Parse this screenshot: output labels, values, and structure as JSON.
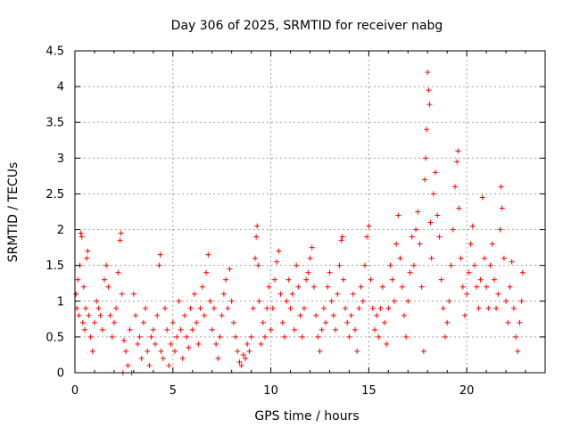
{
  "chart_data": {
    "type": "scatter",
    "title": "Day 306 of 2025, SRMTID for receiver nabg",
    "xlabel": "GPS time / hours",
    "ylabel": "SRMTID / TECUs",
    "xlim": [
      0,
      24
    ],
    "ylim": [
      0,
      4.5
    ],
    "xticks": [
      0,
      5,
      10,
      15,
      20
    ],
    "yticks": [
      0,
      0.5,
      1,
      1.5,
      2,
      2.5,
      3,
      3.5,
      4,
      4.5
    ],
    "xtick_labels": [
      "0",
      "5",
      "10",
      "15",
      "20"
    ],
    "ytick_labels": [
      "0",
      "0.5",
      "1",
      "1.5",
      "2",
      "2.5",
      "3",
      "3.5",
      "4",
      "4.5"
    ],
    "grid": true,
    "marker": "+",
    "color": "#ff0000",
    "series": [
      {
        "name": "",
        "points": [
          [
            0.05,
            1.1
          ],
          [
            0.1,
            0.9
          ],
          [
            0.15,
            1.3
          ],
          [
            0.2,
            0.8
          ],
          [
            0.25,
            1.5
          ],
          [
            0.3,
            1.95
          ],
          [
            0.35,
            1.9
          ],
          [
            0.4,
            0.7
          ],
          [
            0.45,
            1.2
          ],
          [
            0.5,
            0.6
          ],
          [
            0.55,
            0.9
          ],
          [
            0.6,
            1.6
          ],
          [
            0.65,
            1.7
          ],
          [
            0.7,
            0.8
          ],
          [
            0.8,
            0.5
          ],
          [
            0.9,
            0.3
          ],
          [
            1.0,
            0.7
          ],
          [
            1.1,
            1.0
          ],
          [
            1.2,
            0.9
          ],
          [
            1.3,
            0.8
          ],
          [
            1.4,
            0.6
          ],
          [
            1.5,
            1.3
          ],
          [
            1.6,
            1.5
          ],
          [
            1.7,
            1.2
          ],
          [
            1.8,
            0.8
          ],
          [
            1.9,
            0.5
          ],
          [
            2.0,
            0.7
          ],
          [
            2.1,
            0.9
          ],
          [
            2.2,
            1.4
          ],
          [
            2.3,
            1.85
          ],
          [
            2.35,
            1.95
          ],
          [
            2.4,
            1.1
          ],
          [
            2.45,
            0.0
          ],
          [
            2.5,
            0.45
          ],
          [
            2.6,
            0.3
          ],
          [
            2.7,
            0.1
          ],
          [
            2.8,
            0.6
          ],
          [
            2.9,
            0.0
          ],
          [
            3.0,
            1.1
          ],
          [
            3.1,
            0.8
          ],
          [
            3.2,
            0.4
          ],
          [
            3.3,
            0.5
          ],
          [
            3.4,
            0.2
          ],
          [
            3.5,
            0.7
          ],
          [
            3.6,
            0.9
          ],
          [
            3.7,
            0.3
          ],
          [
            3.8,
            0.1
          ],
          [
            3.9,
            0.5
          ],
          [
            4.0,
            0.6
          ],
          [
            4.1,
            0.4
          ],
          [
            4.2,
            0.8
          ],
          [
            4.3,
            1.5
          ],
          [
            4.35,
            1.65
          ],
          [
            4.4,
            0.3
          ],
          [
            4.5,
            0.2
          ],
          [
            4.6,
            0.9
          ],
          [
            4.7,
            0.6
          ],
          [
            4.8,
            0.1
          ],
          [
            4.9,
            0.4
          ],
          [
            5.0,
            0.7
          ],
          [
            5.1,
            0.3
          ],
          [
            5.2,
            0.5
          ],
          [
            5.3,
            1.0
          ],
          [
            5.4,
            0.6
          ],
          [
            5.5,
            0.2
          ],
          [
            5.6,
            0.8
          ],
          [
            5.7,
            0.5
          ],
          [
            5.8,
            0.35
          ],
          [
            5.9,
            0.9
          ],
          [
            6.0,
            0.6
          ],
          [
            6.1,
            1.1
          ],
          [
            6.2,
            0.7
          ],
          [
            6.3,
            0.4
          ],
          [
            6.4,
            0.9
          ],
          [
            6.5,
            1.2
          ],
          [
            6.6,
            0.8
          ],
          [
            6.7,
            1.4
          ],
          [
            6.8,
            1.65
          ],
          [
            6.9,
            1.0
          ],
          [
            7.0,
            0.6
          ],
          [
            7.1,
            0.9
          ],
          [
            7.2,
            0.4
          ],
          [
            7.3,
            0.2
          ],
          [
            7.4,
            0.5
          ],
          [
            7.5,
            0.8
          ],
          [
            7.6,
            1.1
          ],
          [
            7.7,
            1.3
          ],
          [
            7.8,
            0.9
          ],
          [
            7.9,
            1.45
          ],
          [
            8.0,
            1.0
          ],
          [
            8.1,
            0.7
          ],
          [
            8.2,
            0.5
          ],
          [
            8.3,
            0.3
          ],
          [
            8.4,
            0.15
          ],
          [
            8.5,
            0.1
          ],
          [
            8.6,
            0.25
          ],
          [
            8.7,
            0.2
          ],
          [
            8.8,
            0.4
          ],
          [
            8.9,
            0.3
          ],
          [
            9.0,
            0.5
          ],
          [
            9.1,
            0.9
          ],
          [
            9.2,
            1.6
          ],
          [
            9.25,
            1.9
          ],
          [
            9.3,
            2.05
          ],
          [
            9.35,
            1.5
          ],
          [
            9.4,
            1.0
          ],
          [
            9.5,
            0.4
          ],
          [
            9.6,
            0.7
          ],
          [
            9.7,
            0.5
          ],
          [
            9.8,
            0.9
          ],
          [
            9.9,
            1.2
          ],
          [
            10.0,
            0.6
          ],
          [
            10.1,
            0.9
          ],
          [
            10.2,
            1.3
          ],
          [
            10.3,
            1.55
          ],
          [
            10.4,
            1.7
          ],
          [
            10.5,
            1.1
          ],
          [
            10.6,
            0.7
          ],
          [
            10.7,
            0.5
          ],
          [
            10.8,
            1.0
          ],
          [
            10.9,
            1.3
          ],
          [
            11.0,
            0.9
          ],
          [
            11.1,
            1.1
          ],
          [
            11.2,
            0.6
          ],
          [
            11.3,
            1.5
          ],
          [
            11.4,
            1.2
          ],
          [
            11.5,
            0.8
          ],
          [
            11.6,
            0.5
          ],
          [
            11.7,
            0.9
          ],
          [
            11.8,
            1.3
          ],
          [
            11.9,
            1.4
          ],
          [
            12.0,
            1.6
          ],
          [
            12.1,
            1.75
          ],
          [
            12.2,
            1.2
          ],
          [
            12.3,
            0.8
          ],
          [
            12.4,
            0.5
          ],
          [
            12.5,
            0.3
          ],
          [
            12.6,
            0.6
          ],
          [
            12.7,
            0.9
          ],
          [
            12.8,
            0.7
          ],
          [
            12.9,
            1.2
          ],
          [
            13.0,
            1.4
          ],
          [
            13.1,
            1.0
          ],
          [
            13.2,
            0.8
          ],
          [
            13.3,
            0.6
          ],
          [
            13.4,
            1.1
          ],
          [
            13.5,
            1.5
          ],
          [
            13.6,
            1.85
          ],
          [
            13.65,
            1.9
          ],
          [
            13.7,
            1.3
          ],
          [
            13.8,
            0.9
          ],
          [
            13.9,
            0.7
          ],
          [
            14.0,
            0.5
          ],
          [
            14.1,
            0.8
          ],
          [
            14.2,
            1.1
          ],
          [
            14.3,
            0.6
          ],
          [
            14.4,
            0.3
          ],
          [
            14.5,
            0.9
          ],
          [
            14.6,
            1.2
          ],
          [
            14.7,
            1.0
          ],
          [
            14.8,
            1.5
          ],
          [
            14.9,
            1.9
          ],
          [
            15.0,
            2.05
          ],
          [
            15.1,
            1.3
          ],
          [
            15.2,
            0.9
          ],
          [
            15.3,
            0.6
          ],
          [
            15.4,
            0.8
          ],
          [
            15.5,
            0.5
          ],
          [
            15.6,
            0.9
          ],
          [
            15.7,
            1.2
          ],
          [
            15.8,
            0.7
          ],
          [
            15.9,
            0.4
          ],
          [
            16.0,
            0.9
          ],
          [
            16.1,
            1.5
          ],
          [
            16.2,
            1.3
          ],
          [
            16.3,
            1.0
          ],
          [
            16.4,
            1.8
          ],
          [
            16.5,
            2.2
          ],
          [
            16.6,
            1.6
          ],
          [
            16.7,
            1.2
          ],
          [
            16.8,
            0.8
          ],
          [
            16.9,
            0.5
          ],
          [
            17.0,
            1.0
          ],
          [
            17.1,
            1.4
          ],
          [
            17.2,
            1.9
          ],
          [
            17.3,
            1.5
          ],
          [
            17.4,
            2.0
          ],
          [
            17.5,
            2.25
          ],
          [
            17.6,
            1.8
          ],
          [
            17.7,
            1.2
          ],
          [
            17.8,
            0.3
          ],
          [
            17.85,
            2.7
          ],
          [
            17.9,
            3.0
          ],
          [
            17.95,
            3.4
          ],
          [
            18.0,
            4.2
          ],
          [
            18.05,
            3.95
          ],
          [
            18.1,
            3.75
          ],
          [
            18.15,
            2.1
          ],
          [
            18.2,
            1.6
          ],
          [
            18.3,
            2.5
          ],
          [
            18.4,
            2.8
          ],
          [
            18.5,
            2.2
          ],
          [
            18.6,
            1.9
          ],
          [
            18.7,
            1.3
          ],
          [
            18.8,
            0.9
          ],
          [
            18.9,
            0.5
          ],
          [
            19.0,
            0.7
          ],
          [
            19.1,
            1.0
          ],
          [
            19.2,
            1.5
          ],
          [
            19.3,
            2.0
          ],
          [
            19.4,
            2.6
          ],
          [
            19.5,
            2.95
          ],
          [
            19.55,
            3.1
          ],
          [
            19.6,
            2.3
          ],
          [
            19.7,
            1.6
          ],
          [
            19.8,
            1.2
          ],
          [
            19.9,
            0.8
          ],
          [
            20.0,
            1.1
          ],
          [
            20.1,
            1.4
          ],
          [
            20.2,
            1.8
          ],
          [
            20.3,
            2.05
          ],
          [
            20.4,
            1.5
          ],
          [
            20.5,
            1.2
          ],
          [
            20.6,
            0.9
          ],
          [
            20.7,
            1.3
          ],
          [
            20.8,
            2.45
          ],
          [
            20.9,
            1.6
          ],
          [
            21.0,
            1.2
          ],
          [
            21.1,
            0.9
          ],
          [
            21.2,
            1.5
          ],
          [
            21.3,
            1.8
          ],
          [
            21.4,
            1.3
          ],
          [
            21.5,
            0.9
          ],
          [
            21.6,
            1.1
          ],
          [
            21.7,
            2.0
          ],
          [
            21.75,
            2.6
          ],
          [
            21.8,
            2.3
          ],
          [
            21.9,
            1.6
          ],
          [
            22.0,
            1.0
          ],
          [
            22.1,
            0.7
          ],
          [
            22.2,
            1.2
          ],
          [
            22.3,
            1.55
          ],
          [
            22.4,
            0.9
          ],
          [
            22.5,
            0.5
          ],
          [
            22.6,
            0.3
          ],
          [
            22.7,
            0.7
          ],
          [
            22.8,
            1.0
          ],
          [
            22.85,
            1.4
          ]
        ]
      }
    ]
  }
}
